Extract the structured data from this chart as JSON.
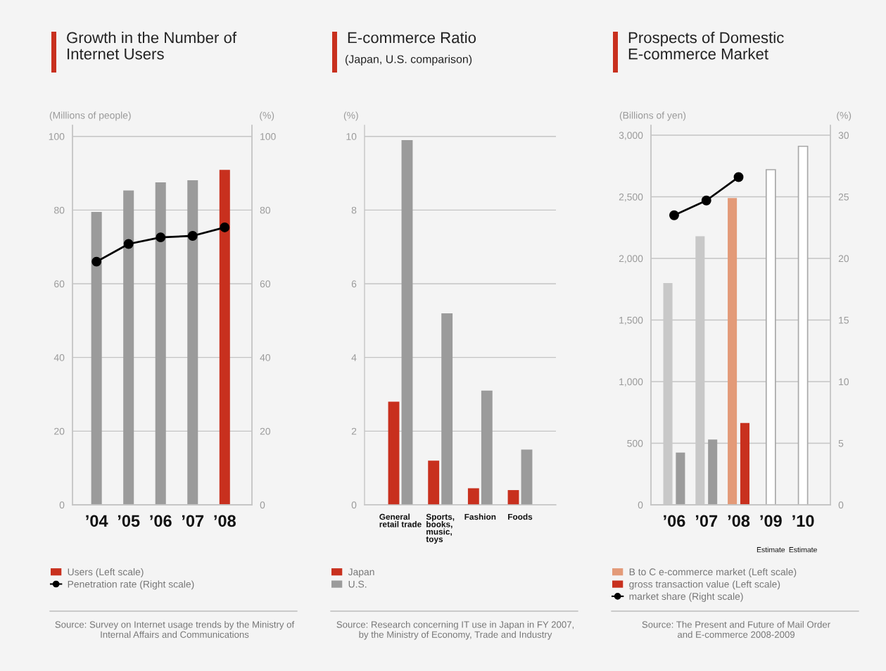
{
  "chart_data": [
    {
      "type": "bar",
      "title": "Growth in the Number of\nInternet Users",
      "ylabel": "(Millions of people)",
      "y2label": "(%)",
      "categories": [
        "’04",
        "’05",
        "’06",
        "’07",
        "’08"
      ],
      "series": [
        {
          "name": "Users (Left scale)",
          "color": "#c8301e",
          "colors": [
            "#9b9b9b",
            "#9b9b9b",
            "#9b9b9b",
            "#9b9b9b",
            "#c8301e"
          ],
          "values": [
            79.5,
            85.3,
            87.5,
            88.1,
            90.9
          ]
        },
        {
          "name": "Penetration rate (Right scale)",
          "type": "line",
          "axis": "y2",
          "color": "#000000",
          "values": [
            66.0,
            70.8,
            72.6,
            73.0,
            75.3
          ]
        }
      ],
      "ylim": [
        0,
        103
      ],
      "yticks": [
        0,
        20,
        40,
        60,
        80,
        100
      ],
      "y2lim": [
        0,
        103
      ],
      "y2ticks": [
        0,
        20,
        40,
        60,
        80,
        100
      ],
      "grid": "y",
      "marker": "circle",
      "legend": "bottom",
      "annotations": [
        "Source: Survey on Internet usage trends by the Ministry of\nInternal Affairs and Communications"
      ]
    },
    {
      "type": "bar",
      "title": "E-commerce Ratio",
      "subtitle": "(Japan, U.S. comparison)",
      "ylabel": "(%)",
      "categories": [
        "General\nretail trade",
        "Sports,\nbooks,\nmusic,\ntoys",
        "Fashion",
        "Foods"
      ],
      "series": [
        {
          "name": "Japan",
          "color": "#c8301e",
          "values": [
            2.8,
            1.2,
            0.45,
            0.4
          ]
        },
        {
          "name": "U.S.",
          "color": "#9b9b9b",
          "values": [
            9.9,
            5.2,
            3.1,
            1.5
          ]
        }
      ],
      "ylim": [
        0,
        10.3
      ],
      "yticks": [
        0,
        2,
        4,
        6,
        8,
        10
      ],
      "grid": "y",
      "legend": "bottom",
      "annotations": [
        "Source: Research concerning IT use in Japan in FY 2007,\nby the Ministry of Economy, Trade and Industry"
      ]
    },
    {
      "type": "bar",
      "title": "Prospects of Domestic\nE-commerce Market",
      "ylabel": "(Billions of yen)",
      "y2label": "(%)",
      "categories": [
        "’06",
        "’07",
        "’08",
        "’09\nEstimate",
        "’10\nEstimate"
      ],
      "series": [
        {
          "name": "B to C e-commerce market (Left scale)",
          "color": "#e39a78",
          "colors": [
            "#c8c8c8",
            "#c8c8c8",
            "#e39a78",
            "#ffffff",
            "#ffffff"
          ],
          "values": [
            1800,
            2180,
            2490,
            2720,
            2910
          ]
        },
        {
          "name": "gross transaction value (Left scale)",
          "color": "#c8301e",
          "colors": [
            "#9b9b9b",
            "#9b9b9b",
            "#c8301e",
            null,
            null
          ],
          "values": [
            425,
            530,
            665,
            null,
            null
          ]
        },
        {
          "name": "market share (Right scale)",
          "type": "line",
          "axis": "y2",
          "color": "#000000",
          "values": [
            23.5,
            24.7,
            26.6,
            null,
            null
          ]
        }
      ],
      "ylim": [
        0,
        3080
      ],
      "yticks": [
        0,
        500,
        {
          "value": 1000,
          "label": "1,000"
        },
        {
          "value": 1500,
          "label": "1,500"
        },
        {
          "value": 2000,
          "label": "2,000"
        },
        {
          "value": 2500,
          "label": "2,500"
        },
        {
          "value": 3000,
          "label": "3,000"
        }
      ],
      "y2lim": [
        0,
        30.8
      ],
      "y2ticks": [
        0,
        5,
        10,
        15,
        20,
        25,
        30
      ],
      "grid": "y",
      "marker": "circle",
      "legend": "bottom",
      "annotations": [
        "Source: The Present and Future of Mail Order\nand E-commerce 2008-2009"
      ]
    }
  ]
}
